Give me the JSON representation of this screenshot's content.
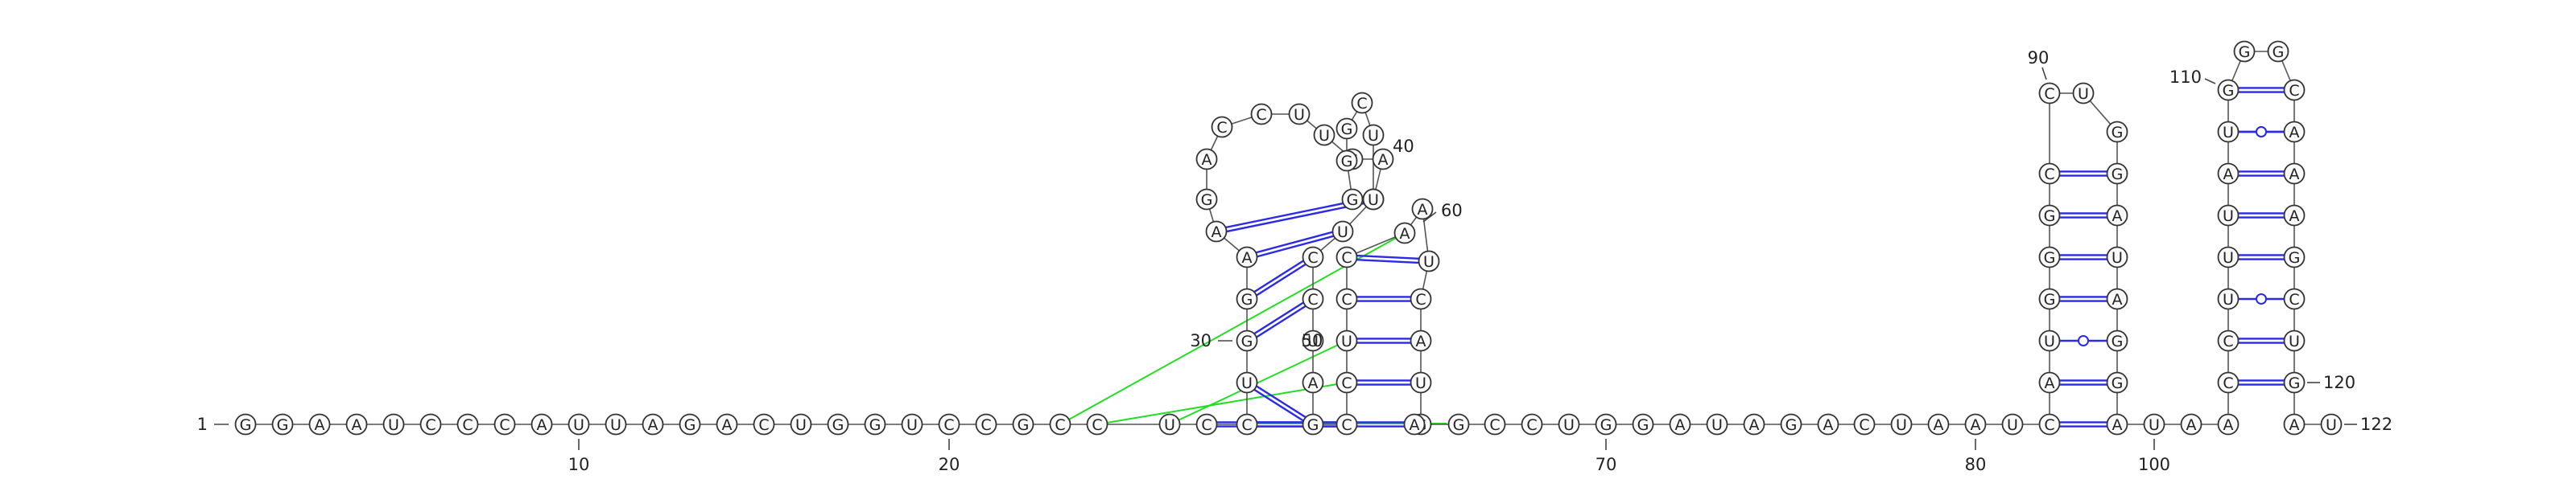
{
  "diagram": {
    "sequence": "GGAAUCCCAUUAGACUGGUCCGCCUCCUGGAAGACCUUGAGGGGCUUUCCUAGCCUCCAAUCAUGAGCCUGGAUAGACUAAUCAUGGGCCUGGAUAGGAUAACCUUUAUGGGCAAAGCUGAU",
    "numbered_positions": [
      "1",
      "10",
      "20",
      "30",
      "40",
      "50",
      "60",
      "70",
      "80",
      "90",
      "100",
      "110",
      "120",
      "122"
    ],
    "colors": {
      "backbone": "#555555",
      "base_pair": "#2a2ae8",
      "pseudoknot": "#22dd22"
    }
  },
  "nucleotides": [
    "G",
    "G",
    "A",
    "A",
    "U",
    "C",
    "C",
    "C",
    "A",
    "U",
    "U",
    "A",
    "G",
    "A",
    "C",
    "U",
    "G",
    "G",
    "U",
    "C",
    "C",
    "G",
    "C",
    "C",
    "U",
    "C",
    "C",
    "U",
    "G",
    "G",
    "A",
    "A",
    "G",
    "A",
    "C",
    "C",
    "U",
    "U",
    "G",
    "A",
    "G",
    "G",
    "G",
    "G",
    "C",
    "U",
    "U",
    "U",
    "C",
    "C",
    "U",
    "A",
    "G",
    "C",
    "C",
    "U",
    "C",
    "C",
    "A",
    "A",
    "U",
    "C",
    "A",
    "U",
    "G",
    "A",
    "G",
    "C",
    "C",
    "U",
    "G",
    "G",
    "A",
    "U",
    "A",
    "G",
    "A",
    "C",
    "U",
    "A",
    "A",
    "U",
    "C",
    "A",
    "U",
    "G",
    "G",
    "G",
    "C",
    "C",
    "U",
    "G",
    "G",
    "A",
    "U",
    "A",
    "G",
    "G",
    "A",
    "U",
    "A",
    "A",
    "C",
    "C",
    "U",
    "U",
    "U",
    "A",
    "U",
    "G",
    "G",
    "G",
    "C",
    "A",
    "A",
    "A",
    "G",
    "C",
    "U",
    "G",
    "A",
    "U"
  ],
  "labels": [
    "1",
    "10",
    "20",
    "30",
    "40",
    "50",
    "60",
    "70",
    "80",
    "90",
    "100",
    "110",
    "120",
    "122"
  ]
}
